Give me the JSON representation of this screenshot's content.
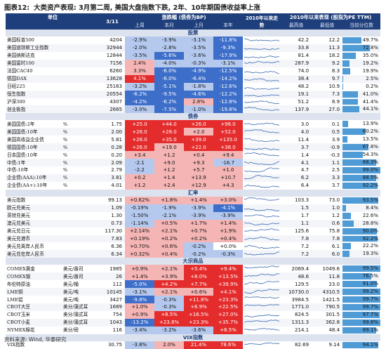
{
  "title": {
    "label": "图表12:",
    "text": "大类资产表现: 3月第二周, 美国大盘指数下跌, 2年、10年期国债收益率上涨"
  },
  "header": {
    "unit": "单位",
    "date": "3/11",
    "change_group": "涨跌幅 (债券为BP)",
    "chg_cols": [
      "上周",
      "本月",
      "上月",
      "本年"
    ],
    "spark": "2010年以来走势",
    "since2010_group": "2010年以来表现 (股指为PE TTM)",
    "since_cols": [
      "最高值",
      "最低值",
      "当前分位数"
    ]
  },
  "colors": {
    "header_bg": "#1f3f7c",
    "section_bg": "#dde3ee",
    "bar": "#4f9bd6",
    "up": "#e52c2c",
    "up_light": "#f5b5b5",
    "down": "#3d6ec9",
    "down_light": "#b5c9ee",
    "spark": "#3d6bb3"
  },
  "sections": [
    {
      "title": "股票",
      "rows": [
        {
          "name": "美国标普500",
          "unit": "",
          "val": "4204",
          "chg": [
            "-2.9%",
            "-3.9%",
            "-3.1%",
            "-11.8%"
          ],
          "hi": "42.2",
          "lo": "12.2",
          "pct": "49.7%"
        },
        {
          "name": "美国道琼斯工业指数",
          "unit": "",
          "val": "32944",
          "chg": [
            "-2.0%",
            "-2.8%",
            "-3.5%",
            "-9.3%"
          ],
          "hi": "33.8",
          "lo": "11.3",
          "pct": "72.8%"
        },
        {
          "name": "美国纳斯达克",
          "unit": "",
          "val": "12844",
          "chg": [
            "-3.5%",
            "-5.6%",
            "-3.6%",
            "-17.9%"
          ],
          "hi": "81.4",
          "lo": "18.2",
          "pct": "35.0%"
        },
        {
          "name": "美国富时100",
          "unit": "",
          "val": "7156",
          "chg": [
            "2.4%",
            "-4.0%",
            "-0.3%",
            "-3.1%"
          ],
          "hi": "287.9",
          "lo": "9.2",
          "pct": "19.2%"
        },
        {
          "name": "法国CAC40",
          "unit": "",
          "val": "6260",
          "chg": [
            "3.3%",
            "-6.0%",
            "-4.9%",
            "-12.5%"
          ],
          "hi": "74.0",
          "lo": "8.3",
          "pct": "19.9%"
        },
        {
          "name": "德国DAX",
          "unit": "",
          "val": "13628",
          "chg": [
            "4.1%",
            "-6.0%",
            "-6.4%",
            "-14.2%"
          ],
          "hi": "38.4",
          "lo": "9.7",
          "pct": "2.5%"
        },
        {
          "name": "日经225",
          "unit": "",
          "val": "25163",
          "chg": [
            "-3.2%",
            "-5.1%",
            "-1.8%",
            "-12.6%"
          ],
          "hi": "48.2",
          "lo": "10.9",
          "pct": "0.2%"
        },
        {
          "name": "恒生指数",
          "unit": "",
          "val": "20554",
          "chg": [
            "-6.2%",
            "-9.5%",
            "-4.6%",
            "-12.2%"
          ],
          "hi": "19.1",
          "lo": "7.3",
          "pct": "41.0%"
        },
        {
          "name": "沪深300",
          "unit": "",
          "val": "4307",
          "chg": [
            "-4.2%",
            "-6.2%",
            "2.8%",
            "-12.8%"
          ],
          "hi": "51.2",
          "lo": "8.9",
          "pct": "41.4%"
        },
        {
          "name": "创业板指",
          "unit": "",
          "val": "2665",
          "chg": [
            "-3.0%",
            "-7.5%",
            "-1.0%",
            "-19.8%"
          ],
          "hi": "137.9",
          "lo": "27.0",
          "pct": "44.1%"
        }
      ]
    },
    {
      "title": "债券",
      "rows": [
        {
          "name": "美国国债:2年",
          "unit": "%",
          "val": "1.75",
          "chg": [
            "+25.0",
            "+44.0",
            "+26.0",
            "+98.0"
          ],
          "hi": "3.0",
          "lo": "0.1",
          "pct": "13.9%"
        },
        {
          "name": "美国国债:10年",
          "unit": "%",
          "val": "2.00",
          "chg": [
            "+26.0",
            "+28.0",
            "+2.0",
            "+52.0"
          ],
          "hi": "4.0",
          "lo": "0.5",
          "pct": "60.2%"
        },
        {
          "name": "美国高收益企业债",
          "unit": "%",
          "val": "5.81",
          "chg": [
            "+26.0",
            "+35.0",
            "+39.0",
            "+135.0"
          ],
          "hi": "11.4",
          "lo": "3.9",
          "pct": "13.5%"
        },
        {
          "name": "德国国债:10年",
          "unit": "%",
          "val": "0.28",
          "chg": [
            "+26.0",
            "+19.0",
            "+22.0",
            "+38.0"
          ],
          "hi": "3.7",
          "lo": "-0.9",
          "pct": "67.8%"
        },
        {
          "name": "日本国债:10年",
          "unit": "%",
          "val": "0.20",
          "chg": [
            "+3.4",
            "+1.2",
            "+0.4",
            "+9.4"
          ],
          "hi": "1.4",
          "lo": "-0.3",
          "pct": "54.3%"
        },
        {
          "name": "中债:1年",
          "unit": "%",
          "val": "2.09",
          "chg": [
            "-2.1",
            "+9.0",
            "+9.3",
            "-16.7"
          ],
          "hi": "4.1",
          "lo": "1.1",
          "pct": "88.3%"
        },
        {
          "name": "中债:10年",
          "unit": "%",
          "val": "2.79",
          "chg": [
            "-2.2",
            "+1.2",
            "+5.7",
            "+1.0"
          ],
          "hi": "4.7",
          "lo": "2.5",
          "pct": "99.0%"
        },
        {
          "name": "企业债(AAA):10年",
          "unit": "%",
          "val": "3.81",
          "chg": [
            "+0.2",
            "+1.4",
            "+13.9",
            "+10.7"
          ],
          "hi": "6.2",
          "lo": "3.3",
          "pct": "88.5%"
        },
        {
          "name": "企业债(AA+):10年",
          "unit": "%",
          "val": "4.01",
          "chg": [
            "+1.2",
            "+2.4",
            "+12.9",
            "+4.3"
          ],
          "hi": "6.4",
          "lo": "3.7",
          "pct": "92.2%"
        }
      ]
    },
    {
      "title": "汇率",
      "rows": [
        {
          "name": "美元指数",
          "unit": "",
          "val": "99.13",
          "chg": [
            "+0.62%",
            "+1.8%",
            "+1.4%",
            "+3.0%"
          ],
          "hi": "103.3",
          "lo": "73.0",
          "pct": "93.5%"
        },
        {
          "name": "欧元兑美元",
          "unit": "",
          "val": "1.09",
          "chg": [
            "-0.19%",
            "-1.9%",
            "-3.9%",
            "-4.1%"
          ],
          "hi": "1.5",
          "lo": "1.0",
          "pct": "8.4%"
        },
        {
          "name": "英镑兑美元",
          "unit": "",
          "val": "1.30",
          "chg": [
            "-1.50%",
            "-2.1%",
            "-3.9%",
            "-3.9%"
          ],
          "hi": "1.7",
          "lo": "1.2",
          "pct": "22.6%"
        },
        {
          "name": "澳元兑美元",
          "unit": "",
          "val": "0.73",
          "chg": [
            "-1.14%",
            "+0.5%",
            "+1.7%",
            "+1.4%"
          ],
          "hi": "1.1",
          "lo": "0.6",
          "pct": "28.8%"
        },
        {
          "name": "美元兑日元",
          "unit": "",
          "val": "117.30",
          "chg": [
            "+2.14%",
            "+2.1%",
            "+0.7%",
            "+1.9%"
          ],
          "hi": "125.6",
          "lo": "75.8",
          "pct": "90.0%"
        },
        {
          "name": "美元兑港币",
          "unit": "",
          "val": "7.83",
          "chg": [
            "+0.19%",
            "+0.2%",
            "+0.2%",
            "+0.4%"
          ],
          "hi": "7.8",
          "lo": "7.8",
          "pct": "92.2%"
        },
        {
          "name": "美元兑离岸人民币",
          "unit": "",
          "val": "6.36",
          "chg": [
            "+0.70%",
            "+0.6%",
            "-0.2%",
            "+0.0%"
          ],
          "hi": "7.2",
          "lo": "6.1",
          "pct": "22.2%"
        },
        {
          "name": "美元兑在岸人民币",
          "unit": "",
          "val": "6.34",
          "chg": [
            "+0.32%",
            "+0.4%",
            "-0.2%",
            "-0.3%"
          ],
          "hi": "7.2",
          "lo": "6.0",
          "pct": "19.3%"
        }
      ]
    },
    {
      "title": "大宗商品",
      "rows": [
        {
          "name": "COMEX黄金",
          "unit": "美元/盎司",
          "val": "1985",
          "chg": [
            "+0.9%",
            "+2.1%",
            "+5.4%",
            "+9.4%"
          ],
          "hi": "2069.4",
          "lo": "1049.6",
          "pct": "99.5%"
        },
        {
          "name": "COMEX银",
          "unit": "美元/盎司",
          "val": "26",
          "chg": [
            "+1.4%",
            "+3.9%",
            "+8.0%",
            "+13.5%"
          ],
          "hi": "48.6",
          "lo": "11.8",
          "pct": "76.5%"
        },
        {
          "name": "布伦特原油",
          "unit": "美元/桶",
          "val": "112",
          "chg": [
            "-5.0%",
            "+4.2%",
            "+7.7%",
            "+39.9%"
          ],
          "hi": "129.5",
          "lo": "23.0",
          "pct": "91.0%"
        },
        {
          "name": "LME铜",
          "unit": "美元/吨",
          "val": "10145",
          "chg": [
            "-3.1%",
            "+2.1%",
            "+0.6%",
            "+4.1%"
          ],
          "hi": "10730.0",
          "lo": "4310.5",
          "pct": "99.2%"
        },
        {
          "name": "LME铝",
          "unit": "美元/吨",
          "val": "3427",
          "chg": [
            "-9.8%",
            "-0.3%",
            "+11.8%",
            "+23.3%"
          ],
          "hi": "3984.5",
          "lo": "1421.5",
          "pct": "99.7%"
        },
        {
          "name": "CBOT大豆",
          "unit": "美分/蒲式耳",
          "val": "1689",
          "chg": [
            "+1.0%",
            "-0.3%",
            "+6.9%",
            "+22.5%"
          ],
          "hi": "1771.0",
          "lo": "790.5",
          "pct": "99.7%"
        },
        {
          "name": "CBOT玉米",
          "unit": "美分/蒲式耳",
          "val": "754",
          "chg": [
            "+0.9%",
            "+8.5%",
            "+16.5%",
            "+27.0%"
          ],
          "hi": "824.5",
          "lo": "301.5",
          "pct": "97.7%"
        },
        {
          "name": "CBOT小麦",
          "unit": "美分/蒲式耳",
          "val": "1043",
          "chg": [
            "-13.2%",
            "+23.8%",
            "+23.3%",
            "+35.7%"
          ],
          "hi": "1311.3",
          "lo": "362.8",
          "pct": "99.8%"
        },
        {
          "name": "NYMEX棉花",
          "unit": "美分/磅",
          "val": "116",
          "chg": [
            "-3.4%",
            "-3.2%",
            "-3.6%",
            "+8.5%"
          ],
          "hi": "214.1",
          "lo": "48.4",
          "pct": "89.1%"
        }
      ]
    },
    {
      "title": "VIX指数",
      "rows": [
        {
          "name": "VIX指数",
          "unit": "",
          "val": "30.75",
          "chg": [
            "-3.8%",
            "2.0%",
            "21.4%",
            "78.6%"
          ],
          "hi": "82.69",
          "lo": "9.14",
          "pct": "94.1%"
        }
      ]
    }
  ],
  "source": "资料来源: Wind, 华泰研究"
}
